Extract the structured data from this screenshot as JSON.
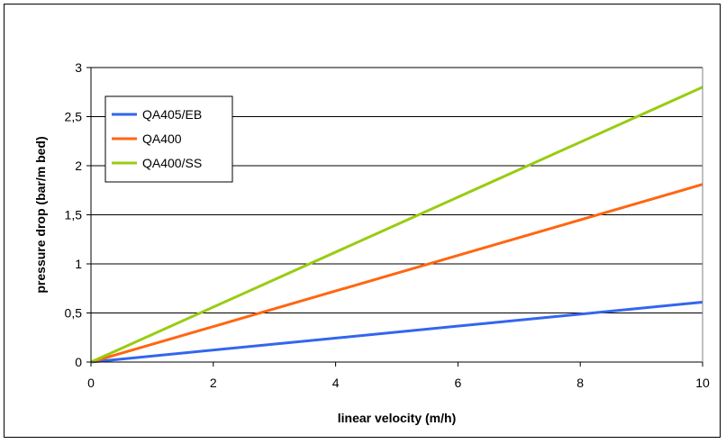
{
  "chart_data": {
    "type": "line",
    "xlabel": "linear velocity (m/h)",
    "ylabel": "pressure drop (bar/m bed)",
    "xlim": [
      0,
      10
    ],
    "ylim": [
      0,
      3
    ],
    "x_ticks": [
      "0",
      "2",
      "4",
      "6",
      "8",
      "10"
    ],
    "y_ticks": [
      "0",
      "0,5",
      "1",
      "1,5",
      "2",
      "2,5",
      "3"
    ],
    "grid": "horizontal",
    "legend_position": "top-left",
    "series": [
      {
        "name": "QA405/EB",
        "color": "#3366ee",
        "x": [
          0,
          10
        ],
        "y": [
          0,
          0.61
        ]
      },
      {
        "name": "QA400",
        "color": "#ff6611",
        "x": [
          0,
          10
        ],
        "y": [
          0,
          1.81
        ]
      },
      {
        "name": "QA400/SS",
        "color": "#99cc11",
        "x": [
          0,
          10
        ],
        "y": [
          0,
          2.8
        ]
      }
    ]
  }
}
